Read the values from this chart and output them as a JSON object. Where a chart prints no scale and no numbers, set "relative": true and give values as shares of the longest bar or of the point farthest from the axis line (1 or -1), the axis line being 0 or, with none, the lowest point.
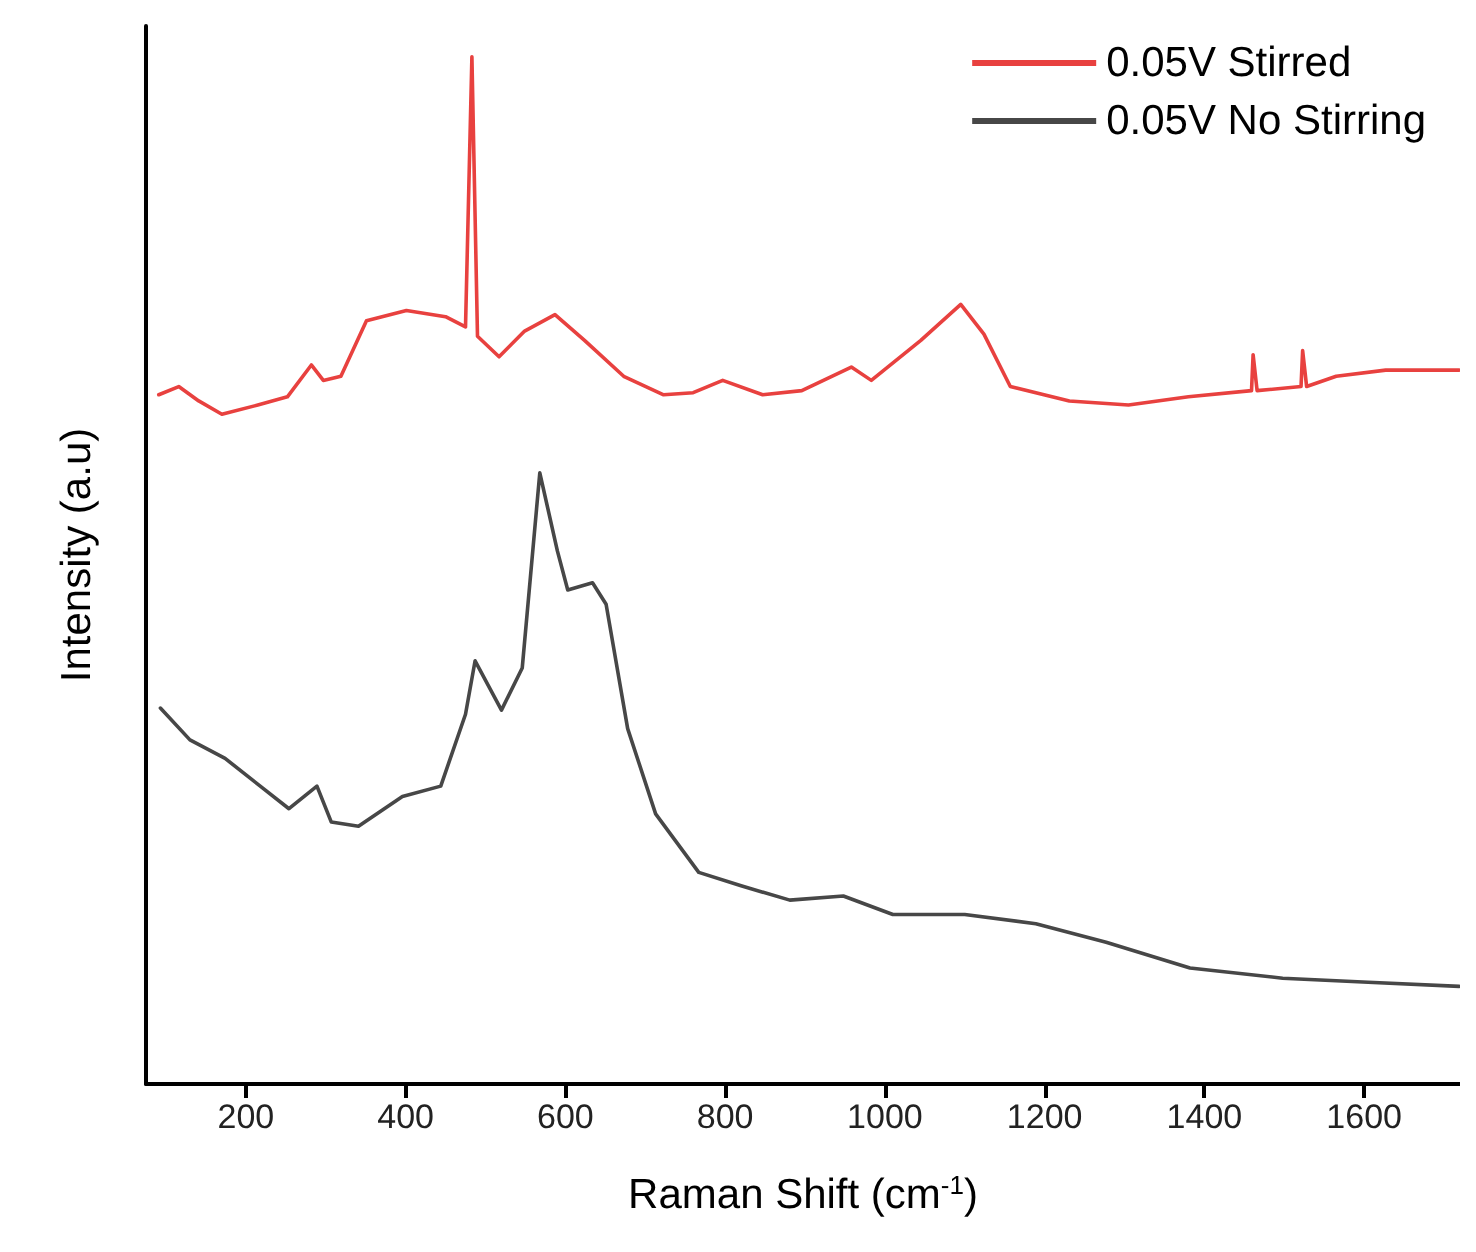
{
  "chart_data": {
    "type": "line",
    "xlabel": "Raman Shift (cm$^{-1}$)",
    "ylabel": "Intensity (a.u)",
    "relative": true,
    "xlim": [
      75,
      1720
    ],
    "xticks": [
      200,
      400,
      600,
      800,
      1000,
      1200,
      1400,
      1600
    ],
    "grid": false,
    "legend": "top right",
    "marker": "none",
    "line_style": "solid",
    "series": [
      {
        "name": "0.05V Stirred",
        "color": "#e8413f",
        "x": [
          91,
          116,
          141,
          170,
          215,
          252,
          282,
          297,
          319,
          351,
          401,
          450,
          475,
          483,
          490,
          517,
          549,
          587,
          624,
          673,
          723,
          760,
          797,
          847,
          896,
          958,
          983,
          1045,
          1095,
          1124,
          1157,
          1231,
          1305,
          1380,
          1459,
          1461,
          1466,
          1521,
          1523,
          1528,
          1565,
          1627,
          1719
        ],
        "values": [
          0.671,
          0.679,
          0.665,
          0.652,
          0.661,
          0.669,
          0.7,
          0.685,
          0.689,
          0.743,
          0.753,
          0.747,
          0.737,
          1.0,
          0.728,
          0.708,
          0.733,
          0.749,
          0.724,
          0.689,
          0.671,
          0.673,
          0.685,
          0.671,
          0.675,
          0.698,
          0.685,
          0.724,
          0.759,
          0.73,
          0.679,
          0.665,
          0.661,
          0.669,
          0.675,
          0.71,
          0.675,
          0.679,
          0.714,
          0.679,
          0.689,
          0.695,
          0.695
        ]
      },
      {
        "name": "0.05V No Stirring",
        "color": "#474747",
        "x": [
          93,
          130,
          174,
          218,
          254,
          289,
          307,
          341,
          396,
          444,
          475,
          487,
          520,
          546,
          568,
          590,
          603,
          634,
          651,
          678,
          713,
          767,
          820,
          881,
          948,
          1010,
          1100,
          1189,
          1277,
          1382,
          1498,
          1605,
          1719
        ],
        "values": [
          0.366,
          0.335,
          0.317,
          0.29,
          0.268,
          0.29,
          0.255,
          0.251,
          0.28,
          0.29,
          0.36,
          0.412,
          0.364,
          0.405,
          0.595,
          0.519,
          0.481,
          0.488,
          0.467,
          0.346,
          0.263,
          0.206,
          0.193,
          0.179,
          0.183,
          0.165,
          0.165,
          0.156,
          0.138,
          0.113,
          0.103,
          0.099,
          0.095
        ]
      }
    ]
  }
}
